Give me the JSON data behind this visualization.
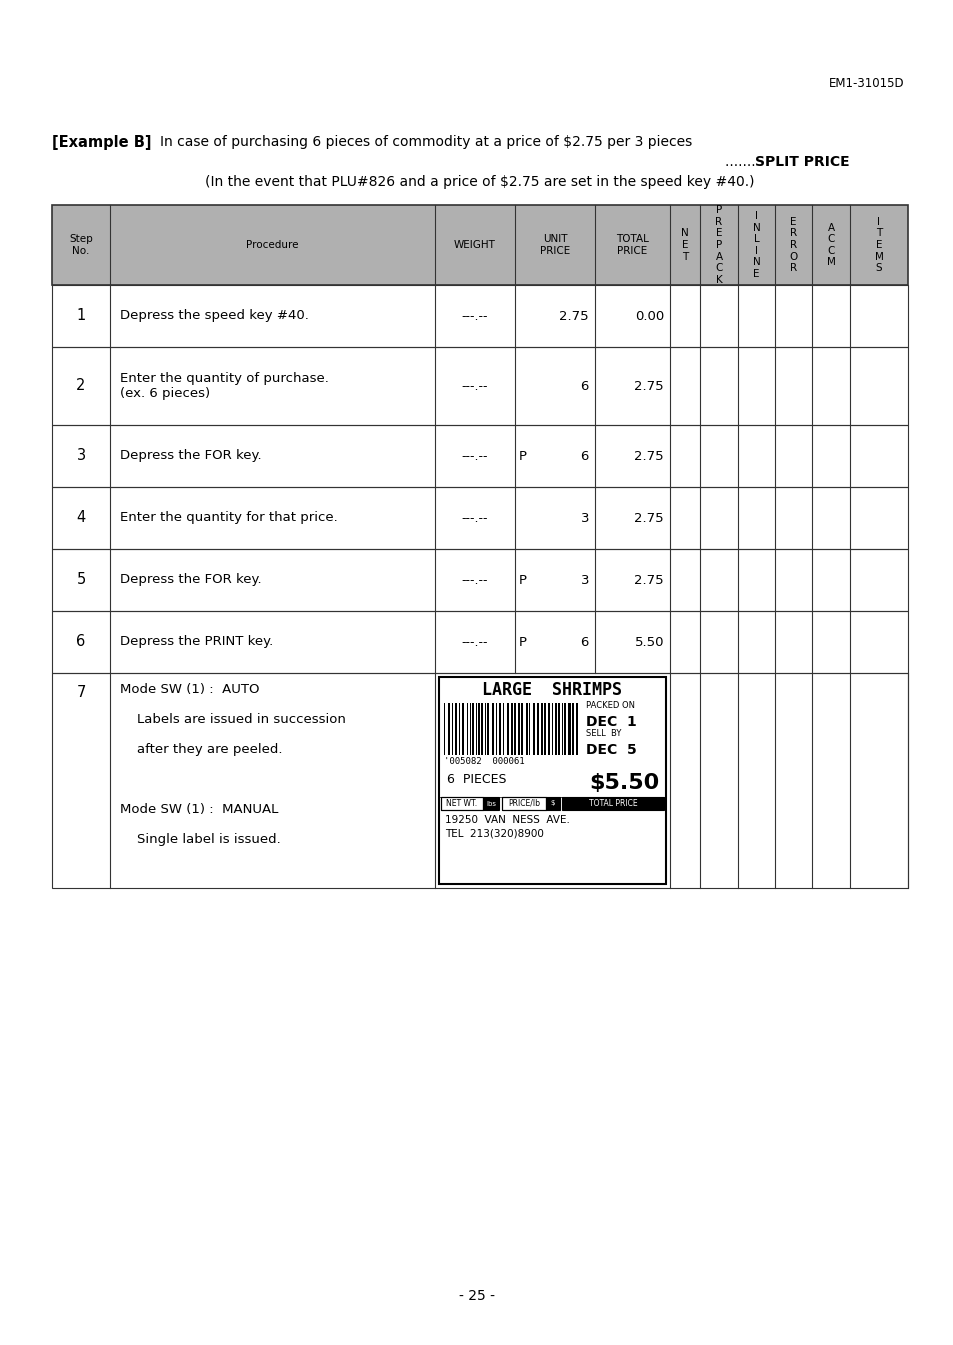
{
  "page_header": "EM1-31015D",
  "example_label": "[Example B]",
  "example_text": "In case of purchasing 6 pieces of commodity at a price of $2.75 per 3 pieces",
  "split_price_dots": "....... ",
  "split_price_bold": "SPLIT PRICE",
  "sub_text": "(In the event that PLU#826 and a price of $2.75 are set in the speed key #40.)",
  "page_footer": "- 25 -",
  "header_texts": [
    "Step\nNo.",
    "Procedure",
    "WEIGHT",
    "UNIT\nPRICE",
    "TOTAL\nPRICE",
    "N\nE\nT",
    "P\nR\nE\nP\nA\nC\nK",
    "I\nN\nL\nI\nN\nE",
    "E\nR\nR\nO\nR",
    "A\nC\nC\nM",
    "I\nT\nE\nM\nS"
  ],
  "rows_data": [
    {
      "step": "1",
      "procedure": "Depress the speed key #40.",
      "weight": "---.--",
      "p": "",
      "unit": "2.75",
      "total": "0.00"
    },
    {
      "step": "2",
      "procedure": "Enter the quantity of purchase.\n(ex. 6 pieces)",
      "weight": "---.--",
      "p": "",
      "unit": "6",
      "total": "2.75"
    },
    {
      "step": "3",
      "procedure": "Depress the FOR key.",
      "weight": "---.--",
      "p": "P",
      "unit": "6",
      "total": "2.75"
    },
    {
      "step": "4",
      "procedure": "Enter the quantity for that price.",
      "weight": "---.--",
      "p": "",
      "unit": "3",
      "total": "2.75"
    },
    {
      "step": "5",
      "procedure": "Depress the FOR key.",
      "weight": "---.--",
      "p": "P",
      "unit": "3",
      "total": "2.75"
    },
    {
      "step": "6",
      "procedure": "Depress the PRINT key.",
      "weight": "---.--",
      "p": "P",
      "unit": "6",
      "total": "5.50"
    }
  ],
  "proc7_lines": [
    "Mode SW (1) :  AUTO",
    "    Labels are issued in succession",
    "    after they are peeled.",
    "",
    "Mode SW (1) :  MANUAL",
    "    Single label is issued."
  ],
  "label_title": "LARGE  SHRIMPS",
  "packed_on": "PACKED ON",
  "dec1": "DEC  1",
  "sell_by": "SELL  BY",
  "dec5": "DEC  5",
  "price_big": "$5.50",
  "pieces": "6  PIECES",
  "barcode_num": "'005082  000061",
  "net_wt_label": "NET WT.",
  "lbs_label": "lbs",
  "price_lb_label": "PRICE/lb",
  "dollar_label": "$",
  "total_price_label": "TOTAL PRICE",
  "total_price_s": "S",
  "address1": "19250  VAN  NESS  AVE.",
  "address2": "TEL  213(320)8900",
  "bg_color": "#ffffff",
  "header_bg": "#b0b0b0",
  "grid_color": "#333333"
}
